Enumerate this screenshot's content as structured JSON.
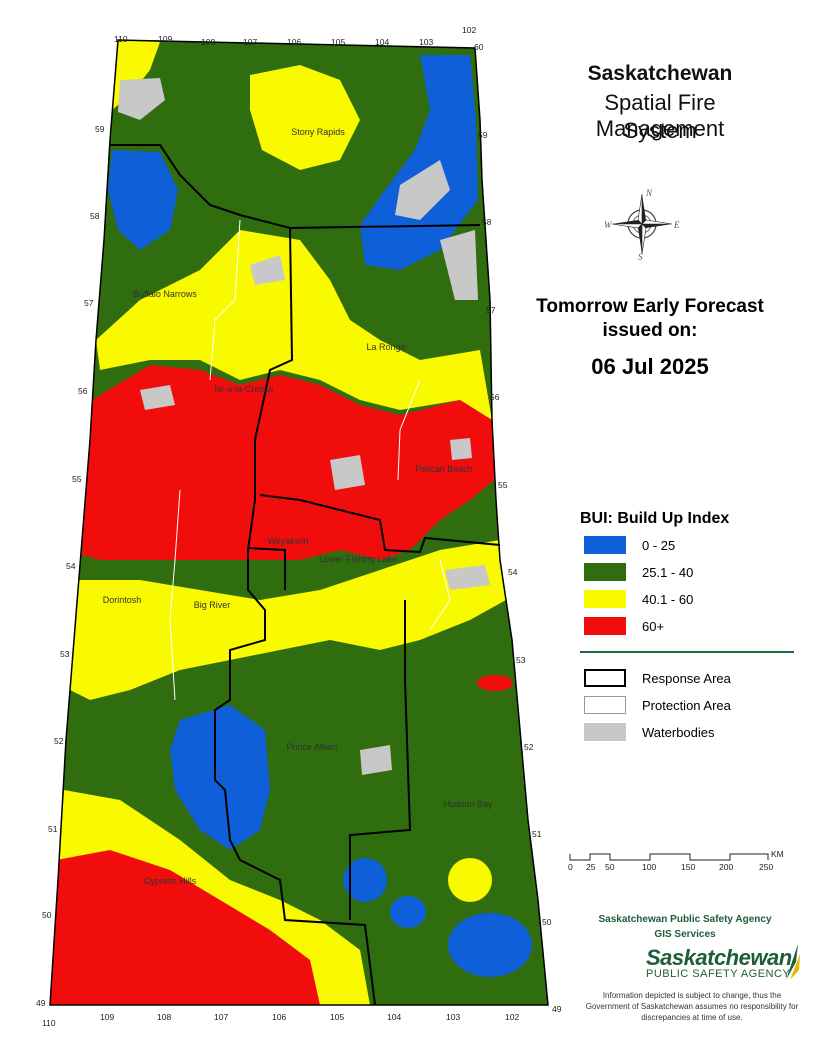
{
  "header": {
    "line1": "Saskatchewan",
    "line2": "Spatial Fire Management",
    "line3": "System"
  },
  "forecast": {
    "line1": "Tomorrow Early Forecast",
    "line2": "issued on:",
    "date": "06 Jul 2025"
  },
  "compass": {
    "n": "N",
    "s": "S",
    "e": "E",
    "w": "W"
  },
  "legend": {
    "title": "BUI: Build Up Index",
    "classes": [
      {
        "label": "0 - 25",
        "color": "#0f5fd8"
      },
      {
        "label": "25.1 - 40",
        "color": "#2f6d0f"
      },
      {
        "label": "40.1 - 60",
        "color": "#f9f900"
      },
      {
        "label": "60+",
        "color": "#f20d0d"
      }
    ],
    "features": [
      {
        "label": "Response Area",
        "style": "thick-black"
      },
      {
        "label": "Protection Area",
        "style": "thin-grey"
      },
      {
        "label": "Waterbodies",
        "style": "fill",
        "color": "#c8c8c8"
      }
    ]
  },
  "scale_bar": {
    "ticks": [
      "0",
      "25",
      "50",
      "100",
      "150",
      "200",
      "250"
    ],
    "unit": "KM"
  },
  "agency": {
    "line1": "Saskatchewan Public Safety Agency",
    "line2": "GIS Services",
    "logo_name": "Saskatchewan",
    "logo_sub": "PUBLIC SAFETY AGENCY"
  },
  "disclaimer": "Information depicted is subject to change, thus the Government of Saskatchewan assumes no responsibility for discrepancies at time of use.",
  "map": {
    "longitudes_top": [
      "110",
      "109",
      "108",
      "107",
      "106",
      "105",
      "104",
      "103",
      "102"
    ],
    "longitudes_bottom": [
      "110",
      "109",
      "108",
      "107",
      "106",
      "105",
      "104",
      "103",
      "102"
    ],
    "latitudes_left": [
      "59",
      "58",
      "57",
      "56",
      "55",
      "54",
      "53",
      "52",
      "51",
      "50",
      "49"
    ],
    "latitudes_right": [
      "60",
      "59",
      "58",
      "57",
      "56",
      "55",
      "54",
      "53",
      "52",
      "51",
      "50",
      "49"
    ],
    "places": [
      "Stony Rapids",
      "Buffalo Narrows",
      "La Ronge",
      "Ile-a-la-Crosse",
      "Pelican Beach",
      "Weyakwin",
      "Lower Fishing Lake",
      "Dorintosh",
      "Big River",
      "Prince Albert",
      "Hudson Bay",
      "Cypress Hills"
    ]
  }
}
